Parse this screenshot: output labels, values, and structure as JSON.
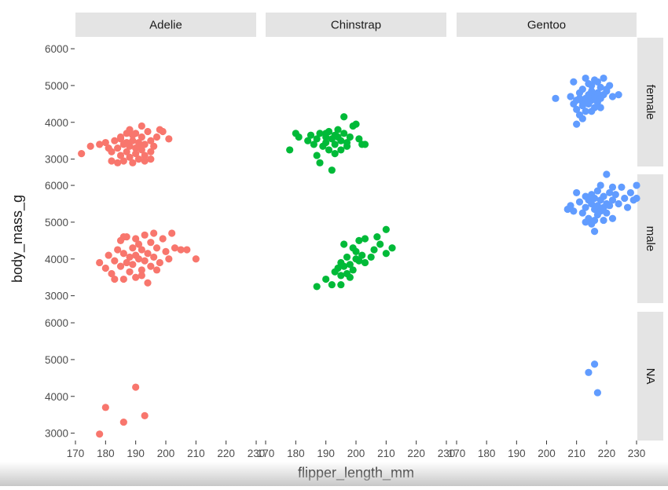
{
  "chart_data": {
    "type": "scatter",
    "xlabel": "flipper_length_mm",
    "ylabel": "body_mass_g",
    "xlim": [
      170,
      230
    ],
    "ylim": [
      2800,
      6300
    ],
    "x_ticks": [
      "170",
      "180",
      "190",
      "200",
      "210",
      "220",
      "230"
    ],
    "y_ticks": [
      "3000",
      "4000",
      "5000",
      "6000"
    ],
    "facet_columns": [
      "Adelie",
      "Chinstrap",
      "Gentoo"
    ],
    "facet_rows": [
      "female",
      "male",
      "NA"
    ],
    "colors": {
      "Adelie": "#f8766d",
      "Chinstrap": "#00ba38",
      "Gentoo": "#619cff"
    },
    "panels": [
      {
        "species": "Adelie",
        "sex": "female",
        "points": [
          [
            172,
            3150
          ],
          [
            175,
            3350
          ],
          [
            178,
            3400
          ],
          [
            180,
            3450
          ],
          [
            181,
            3300
          ],
          [
            182,
            3200
          ],
          [
            182,
            2950
          ],
          [
            183,
            3500
          ],
          [
            184,
            3300
          ],
          [
            185,
            3100
          ],
          [
            185,
            3600
          ],
          [
            186,
            3400
          ],
          [
            186,
            2950
          ],
          [
            187,
            3200
          ],
          [
            187,
            3700
          ],
          [
            188,
            3050
          ],
          [
            188,
            3350
          ],
          [
            189,
            3500
          ],
          [
            189,
            2900
          ],
          [
            190,
            3300
          ],
          [
            190,
            3700
          ],
          [
            190,
            3150
          ],
          [
            191,
            3450
          ],
          [
            191,
            3000
          ],
          [
            192,
            3600
          ],
          [
            192,
            3250
          ],
          [
            193,
            3400
          ],
          [
            193,
            2950
          ],
          [
            194,
            3750
          ],
          [
            195,
            3200
          ],
          [
            195,
            3500
          ],
          [
            196,
            3350
          ],
          [
            197,
            3600
          ],
          [
            198,
            3800
          ],
          [
            199,
            3750
          ],
          [
            185,
            3550
          ],
          [
            184,
            2900
          ],
          [
            188,
            3800
          ],
          [
            192,
            3900
          ],
          [
            193,
            3100
          ],
          [
            195,
            3000
          ],
          [
            187,
            3450
          ],
          [
            189,
            3650
          ],
          [
            191,
            3350
          ],
          [
            201,
            3550
          ]
        ]
      },
      {
        "species": "Adelie",
        "sex": "male",
        "points": [
          [
            178,
            3900
          ],
          [
            180,
            3750
          ],
          [
            181,
            4100
          ],
          [
            182,
            3600
          ],
          [
            183,
            3950
          ],
          [
            184,
            4250
          ],
          [
            185,
            3800
          ],
          [
            185,
            4500
          ],
          [
            186,
            4150
          ],
          [
            186,
            3450
          ],
          [
            187,
            3900
          ],
          [
            187,
            4600
          ],
          [
            188,
            4050
          ],
          [
            188,
            3650
          ],
          [
            189,
            4300
          ],
          [
            189,
            3850
          ],
          [
            190,
            4550
          ],
          [
            190,
            4100
          ],
          [
            190,
            3500
          ],
          [
            191,
            4000
          ],
          [
            191,
            4400
          ],
          [
            192,
            3700
          ],
          [
            192,
            4250
          ],
          [
            193,
            4650
          ],
          [
            193,
            3950
          ],
          [
            194,
            3350
          ],
          [
            194,
            4150
          ],
          [
            195,
            4450
          ],
          [
            195,
            3800
          ],
          [
            196,
            4050
          ],
          [
            196,
            4700
          ],
          [
            197,
            4300
          ],
          [
            198,
            3900
          ],
          [
            199,
            4550
          ],
          [
            200,
            4200
          ],
          [
            201,
            4000
          ],
          [
            202,
            4700
          ],
          [
            203,
            4300
          ],
          [
            205,
            4250
          ],
          [
            207,
            4250
          ],
          [
            210,
            4000
          ],
          [
            183,
            3450
          ],
          [
            186,
            4600
          ],
          [
            192,
            3550
          ],
          [
            197,
            3700
          ]
        ]
      },
      {
        "species": "Adelie",
        "sex": "NA",
        "points": [
          [
            178,
            2975
          ],
          [
            180,
            3700
          ],
          [
            186,
            3300
          ],
          [
            190,
            4250
          ],
          [
            193,
            3475
          ]
        ]
      },
      {
        "species": "Chinstrap",
        "sex": "female",
        "points": [
          [
            178,
            3250
          ],
          [
            180,
            3700
          ],
          [
            181,
            3600
          ],
          [
            184,
            3500
          ],
          [
            185,
            3650
          ],
          [
            186,
            3400
          ],
          [
            187,
            3550
          ],
          [
            187,
            3100
          ],
          [
            188,
            3700
          ],
          [
            189,
            3350
          ],
          [
            190,
            3600
          ],
          [
            190,
            3450
          ],
          [
            191,
            3750
          ],
          [
            191,
            3250
          ],
          [
            192,
            3550
          ],
          [
            192,
            2700
          ],
          [
            193,
            3650
          ],
          [
            193,
            3400
          ],
          [
            194,
            3800
          ],
          [
            195,
            3500
          ],
          [
            195,
            3250
          ],
          [
            196,
            4150
          ],
          [
            196,
            3700
          ],
          [
            197,
            3450
          ],
          [
            198,
            3600
          ],
          [
            199,
            3900
          ],
          [
            200,
            3950
          ],
          [
            201,
            3550
          ],
          [
            202,
            3400
          ],
          [
            203,
            3400
          ],
          [
            188,
            2900
          ],
          [
            190,
            3700
          ],
          [
            193,
            3150
          ],
          [
            197,
            3350
          ],
          [
            194,
            3600
          ]
        ]
      },
      {
        "species": "Chinstrap",
        "sex": "male",
        "points": [
          [
            187,
            3250
          ],
          [
            190,
            3450
          ],
          [
            192,
            3300
          ],
          [
            193,
            3650
          ],
          [
            194,
            3750
          ],
          [
            195,
            3550
          ],
          [
            195,
            3900
          ],
          [
            196,
            4400
          ],
          [
            196,
            3800
          ],
          [
            197,
            3600
          ],
          [
            197,
            4050
          ],
          [
            198,
            3850
          ],
          [
            199,
            4300
          ],
          [
            199,
            3700
          ],
          [
            200,
            4000
          ],
          [
            201,
            3950
          ],
          [
            201,
            4500
          ],
          [
            202,
            4100
          ],
          [
            203,
            3900
          ],
          [
            203,
            4550
          ],
          [
            205,
            4050
          ],
          [
            206,
            4250
          ],
          [
            207,
            4600
          ],
          [
            208,
            4400
          ],
          [
            210,
            4800
          ],
          [
            210,
            4150
          ],
          [
            212,
            4300
          ],
          [
            195,
            3300
          ],
          [
            198,
            3500
          ],
          [
            200,
            4200
          ]
        ]
      },
      {
        "species": "Gentoo",
        "sex": "female",
        "points": [
          [
            203,
            4650
          ],
          [
            208,
            4700
          ],
          [
            209,
            4500
          ],
          [
            209,
            5100
          ],
          [
            210,
            4350
          ],
          [
            210,
            4600
          ],
          [
            210,
            3950
          ],
          [
            211,
            4800
          ],
          [
            211,
            4200
          ],
          [
            212,
            4550
          ],
          [
            212,
            4900
          ],
          [
            212,
            4450
          ],
          [
            213,
            5200
          ],
          [
            213,
            4650
          ],
          [
            213,
            4300
          ],
          [
            214,
            4750
          ],
          [
            214,
            4500
          ],
          [
            215,
            5000
          ],
          [
            215,
            4850
          ],
          [
            215,
            4600
          ],
          [
            216,
            4700
          ],
          [
            216,
            4400
          ],
          [
            217,
            5100
          ],
          [
            217,
            4800
          ],
          [
            218,
            4650
          ],
          [
            218,
            4950
          ],
          [
            219,
            5200
          ],
          [
            219,
            4750
          ],
          [
            220,
            4900
          ],
          [
            221,
            5000
          ],
          [
            222,
            4700
          ],
          [
            224,
            4750
          ],
          [
            212,
            4100
          ],
          [
            215,
            4300
          ],
          [
            217,
            4550
          ],
          [
            211,
            4650
          ],
          [
            214,
            5050
          ],
          [
            216,
            5150
          ],
          [
            218,
            4400
          ],
          [
            220,
            4850
          ]
        ]
      },
      {
        "species": "Gentoo",
        "sex": "male",
        "points": [
          [
            207,
            5350
          ],
          [
            208,
            5450
          ],
          [
            209,
            5300
          ],
          [
            210,
            5800
          ],
          [
            211,
            5550
          ],
          [
            212,
            5250
          ],
          [
            213,
            5700
          ],
          [
            213,
            5400
          ],
          [
            214,
            5600
          ],
          [
            214,
            5100
          ],
          [
            215,
            5750
          ],
          [
            215,
            5500
          ],
          [
            215,
            4950
          ],
          [
            216,
            5650
          ],
          [
            216,
            5350
          ],
          [
            216,
            4750
          ],
          [
            217,
            5850
          ],
          [
            217,
            5450
          ],
          [
            217,
            5200
          ],
          [
            218,
            6000
          ],
          [
            218,
            5600
          ],
          [
            218,
            5300
          ],
          [
            219,
            5700
          ],
          [
            219,
            5050
          ],
          [
            220,
            5500
          ],
          [
            220,
            6300
          ],
          [
            220,
            5250
          ],
          [
            221,
            5800
          ],
          [
            221,
            5450
          ],
          [
            222,
            5600
          ],
          [
            222,
            5100
          ],
          [
            223,
            5750
          ],
          [
            224,
            5500
          ],
          [
            225,
            5950
          ],
          [
            226,
            5650
          ],
          [
            227,
            5400
          ],
          [
            228,
            5800
          ],
          [
            229,
            5600
          ],
          [
            230,
            5650
          ],
          [
            230,
            6000
          ],
          [
            222,
            5950
          ],
          [
            219,
            5400
          ],
          [
            213,
            5000
          ],
          [
            216,
            5050
          ]
        ]
      },
      {
        "species": "Gentoo",
        "sex": "NA",
        "points": [
          [
            214,
            4650
          ],
          [
            216,
            4875
          ],
          [
            217,
            4100
          ]
        ]
      }
    ]
  }
}
